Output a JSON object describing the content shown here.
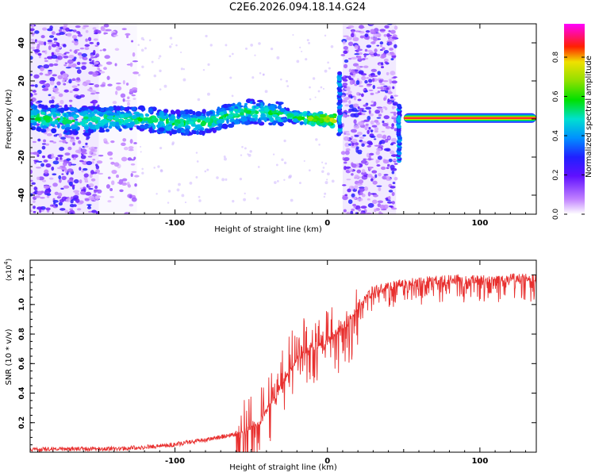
{
  "title": "C2E6.2026.094.18.14.G24",
  "chart_data": [
    {
      "type": "heatmap",
      "title": "C2E6.2026.094.18.14.G24",
      "xlabel": "Height of straight line (km)",
      "ylabel": "Frequency (Hz)",
      "xlim": [
        -195,
        137
      ],
      "ylim": [
        -50,
        50
      ],
      "xticks": [
        -100,
        0,
        100
      ],
      "yticks": [
        -40,
        -20,
        0,
        20,
        40
      ],
      "grid": false,
      "colorbar": {
        "label": "Normalized spectral amplitude",
        "range": [
          0,
          0.97
        ],
        "ticks": [
          0.0,
          0.2,
          0.4,
          0.6,
          0.8
        ],
        "tick_labels": [
          "0.0",
          "0.2",
          "0.4",
          "0.6",
          "0.8"
        ],
        "colors": [
          "#ffffff",
          "#a040ff",
          "#4000ff",
          "#0080ff",
          "#00e0e0",
          "#00e000",
          "#e0e000",
          "#ff0000",
          "#ff00ff"
        ]
      },
      "ridge": {
        "x": [
          -195,
          -180,
          -160,
          -140,
          -120,
          -100,
          -80,
          -65,
          -50,
          -35,
          -20,
          -10,
          0,
          5
        ],
        "y": [
          1,
          0,
          -1,
          0,
          0,
          -2,
          -2,
          2,
          4,
          3,
          1,
          0,
          0,
          -1
        ]
      },
      "noise_regions": [
        {
          "x_range": [
            -195,
            -150
          ],
          "y_range": [
            -50,
            50
          ],
          "level": "dense"
        },
        {
          "x_range": [
            -150,
            -125
          ],
          "y_range": [
            -50,
            50
          ],
          "level": "sparse"
        },
        {
          "x_range": [
            10,
            45
          ],
          "y_range": [
            -50,
            50
          ],
          "level": "dense"
        }
      ],
      "spikes": [
        {
          "x": 8,
          "y_range": [
            -8,
            24
          ]
        },
        {
          "x": 47,
          "y_range": [
            -22,
            7
          ]
        }
      ],
      "tone": {
        "x_range": [
          50,
          137
        ],
        "y": 0.5,
        "amplitude": 0.95
      }
    },
    {
      "type": "line",
      "xlabel": "Height of straight line (km)",
      "ylabel": "SNR (10 * v/v)",
      "scale_label": "(x10",
      "scale_exponent": "4",
      "xlim": [
        -195,
        137
      ],
      "ylim": [
        0,
        1.3
      ],
      "xticks": [
        -100,
        0,
        100
      ],
      "yticks": [
        0.2,
        0.4,
        0.6,
        0.8,
        1.0,
        1.2
      ],
      "ytick_labels": [
        "0.2",
        "0.4",
        "0.6",
        "0.8",
        "1.0",
        "1.2"
      ],
      "grid": false,
      "color": "#e8302f",
      "series": [
        {
          "name": "SNR",
          "x": [
            -195,
            -180,
            -160,
            -140,
            -120,
            -100,
            -80,
            -60,
            -50,
            -45,
            -40,
            -35,
            -30,
            -25,
            -20,
            -15,
            -10,
            -5,
            0,
            5,
            10,
            15,
            20,
            25,
            30,
            40,
            50,
            60,
            80,
            100,
            120,
            137
          ],
          "y": [
            0.01,
            0.02,
            0.02,
            0.02,
            0.03,
            0.05,
            0.08,
            0.12,
            0.15,
            0.2,
            0.28,
            0.35,
            0.45,
            0.55,
            0.62,
            0.68,
            0.72,
            0.72,
            0.75,
            0.8,
            0.85,
            0.92,
            1.0,
            1.05,
            1.1,
            1.12,
            1.15,
            1.16,
            1.17,
            1.17,
            1.18,
            1.18
          ]
        }
      ]
    }
  ]
}
